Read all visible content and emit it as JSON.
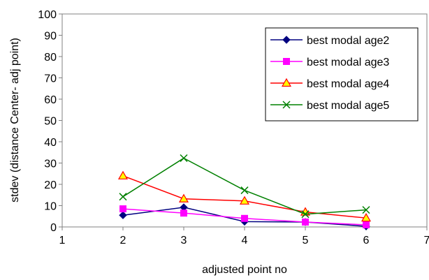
{
  "chart_data": {
    "type": "line",
    "title": "",
    "xlabel": "adjusted point no",
    "ylabel": "stdev (distance Center- adj point)",
    "xlim": [
      1,
      7
    ],
    "ylim": [
      0,
      100
    ],
    "x_ticks": [
      1,
      2,
      3,
      4,
      5,
      6,
      7
    ],
    "y_ticks": [
      0,
      10,
      20,
      30,
      40,
      50,
      60,
      70,
      80,
      90,
      100
    ],
    "grid": false,
    "legend_position": "top-right",
    "series": [
      {
        "name": "best modal age2",
        "color": "#000080",
        "marker": "diamond",
        "x": [
          2,
          3,
          4,
          5,
          6
        ],
        "values": [
          5.5,
          9.2,
          2.5,
          2.3,
          0.3
        ]
      },
      {
        "name": "best modal age3",
        "color": "#FF00FF",
        "marker": "square",
        "x": [
          2,
          3,
          4,
          5,
          6
        ],
        "values": [
          8.5,
          6.5,
          4.0,
          2.3,
          1.0
        ]
      },
      {
        "name": "best modal age4",
        "color": "#FF0000",
        "marker": "triangle",
        "marker_fill": "#FFFF00",
        "x": [
          2,
          3,
          4,
          5,
          6
        ],
        "values": [
          24.0,
          13.2,
          12.2,
          7.0,
          4.2
        ]
      },
      {
        "name": "best modal age5",
        "color": "#008000",
        "marker": "x",
        "x": [
          2,
          3,
          4,
          5,
          6
        ],
        "values": [
          14.2,
          32.3,
          17.2,
          6.0,
          8.0
        ]
      }
    ]
  }
}
